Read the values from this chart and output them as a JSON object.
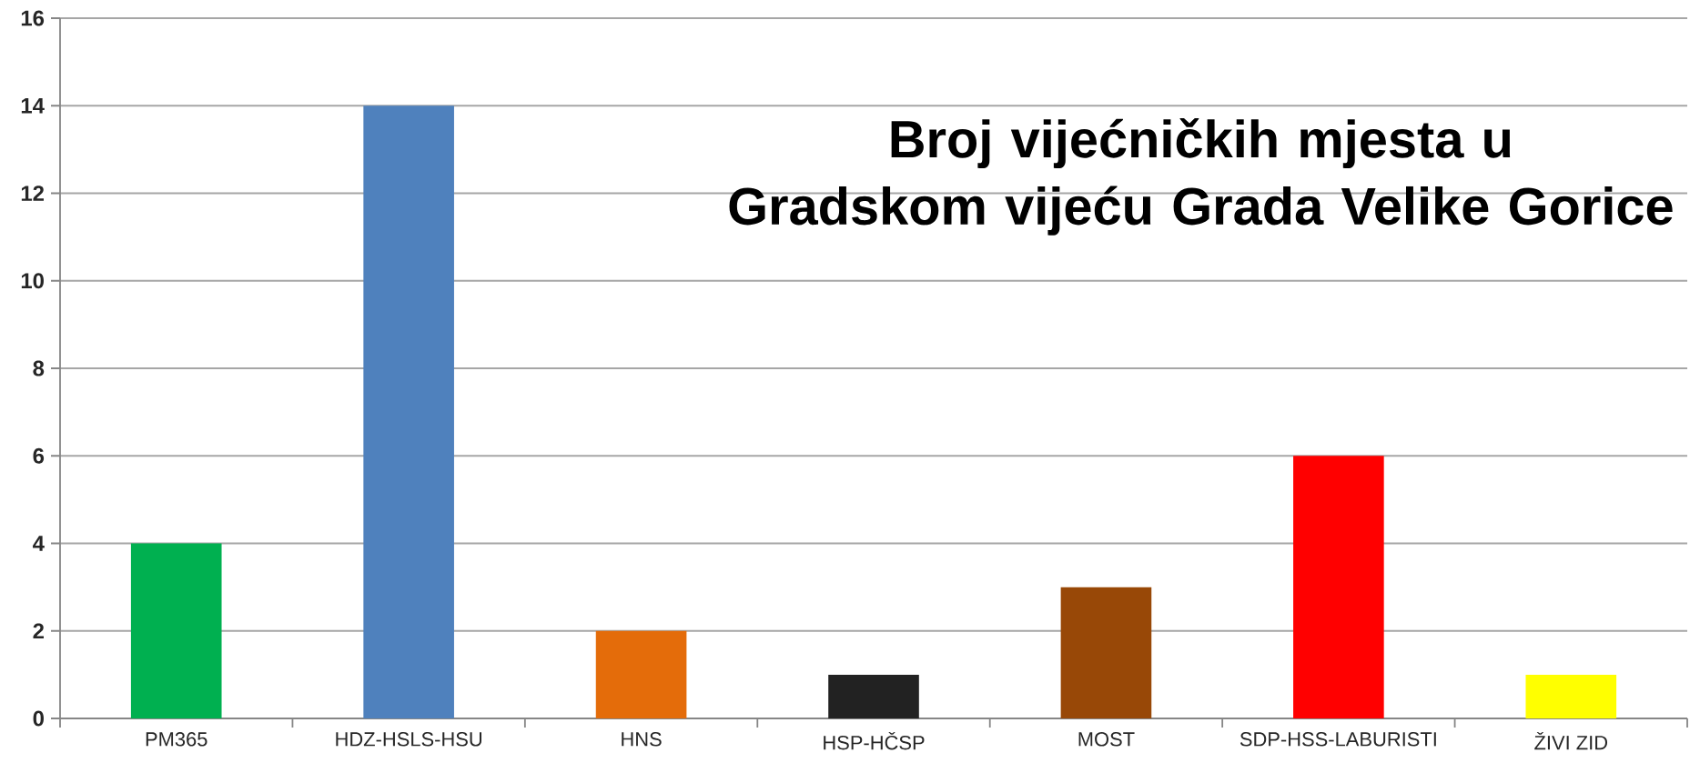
{
  "chart_data": {
    "type": "bar",
    "title": "Broj vijećničkih mjesta u Gradskom vijeću Grada Velike Gorice",
    "categories": [
      "PM365",
      "HDZ-HSLS-HSU",
      "HNS",
      "HSP-HČSP",
      "MOST",
      "SDP-HSS-LABURISTI",
      "ŽIVI ZID"
    ],
    "values": [
      4,
      14,
      2,
      1,
      3,
      6,
      1
    ],
    "colors": [
      "#00b050",
      "#4f81bd",
      "#e46c0a",
      "#222222",
      "#984807",
      "#ff0000",
      "#ffff00"
    ],
    "ylim": [
      0,
      16
    ],
    "yticks": [
      0,
      2,
      4,
      6,
      8,
      10,
      12,
      14,
      16
    ],
    "grid": "y"
  }
}
